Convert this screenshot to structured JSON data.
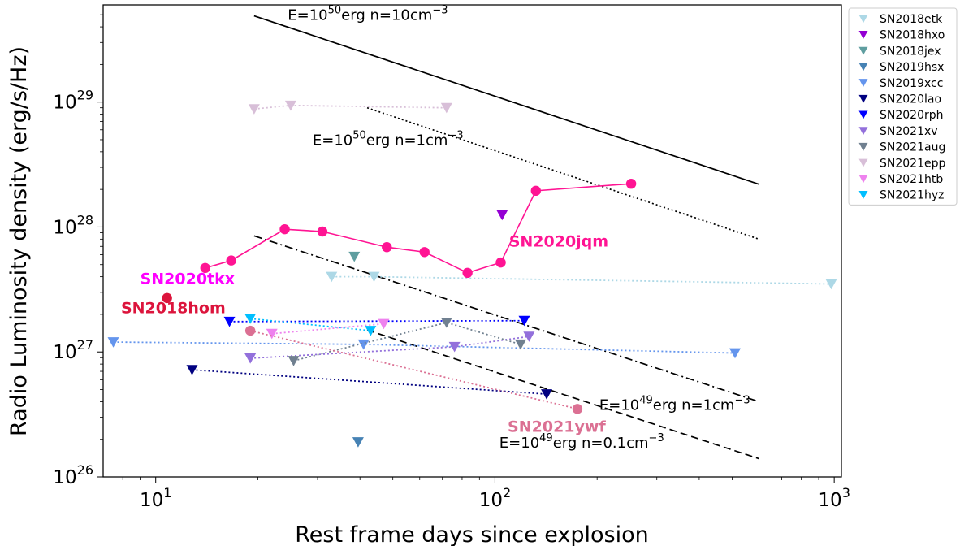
{
  "chart_data": {
    "type": "scatter",
    "xscale": "log",
    "yscale": "log",
    "xlim": [
      7.0,
      1050
    ],
    "ylim": [
      1e+26,
      6e+29
    ],
    "xlabel": "Rest frame days since explosion",
    "ylabel": "Radio Luminosity density (erg/s/Hz)",
    "x_ticks": [
      {
        "value": 10,
        "base": "10",
        "exp": "1"
      },
      {
        "value": 100,
        "base": "10",
        "exp": "2"
      },
      {
        "value": 1000,
        "base": "10",
        "exp": "3"
      }
    ],
    "y_ticks": [
      {
        "value": 1e+26,
        "base": "10",
        "exp": "26"
      },
      {
        "value": 1e+27,
        "base": "10",
        "exp": "27"
      },
      {
        "value": 1e+28,
        "base": "10",
        "exp": "28"
      },
      {
        "value": 1e+29,
        "base": "10",
        "exp": "29"
      }
    ],
    "legend_position": "outside-right-top",
    "series": [
      {
        "name": "SN2018etk",
        "color": "#add8e6",
        "marker": "triangle-down",
        "connect": "dotted",
        "points": [
          [
            33.0,
            4e+27
          ],
          [
            44.0,
            4e+27
          ],
          [
            980,
            3.5e+27
          ]
        ]
      },
      {
        "name": "SN2018hxo",
        "color": "#9400d3",
        "marker": "triangle-down",
        "connect": "none",
        "points": [
          [
            105,
            1.25e+28
          ]
        ]
      },
      {
        "name": "SN2018jex",
        "color": "#5f9ea0",
        "marker": "triangle-down",
        "connect": "none",
        "points": [
          [
            38.5,
            5.8e+27
          ]
        ]
      },
      {
        "name": "SN2019hsx",
        "color": "#4682b4",
        "marker": "triangle-down",
        "connect": "none",
        "points": [
          [
            39.5,
            1.9e+26
          ]
        ]
      },
      {
        "name": "SN2019xcc",
        "color": "#6495ed",
        "marker": "triangle-down",
        "connect": "dotted",
        "points": [
          [
            7.5,
            1.2e+27
          ],
          [
            41.0,
            1.15e+27
          ],
          [
            510,
            9.8e+26
          ]
        ]
      },
      {
        "name": "SN2020lao",
        "color": "#000080",
        "marker": "triangle-down",
        "connect": "dotted",
        "points": [
          [
            12.8,
            7.2e+26
          ],
          [
            142,
            4.6e+26
          ]
        ]
      },
      {
        "name": "SN2020rph",
        "color": "#0000ff",
        "marker": "triangle-down",
        "connect": "dotted",
        "points": [
          [
            16.5,
            1.75e+27
          ],
          [
            122,
            1.78e+27
          ]
        ]
      },
      {
        "name": "SN2021xv",
        "color": "#9370db",
        "marker": "triangle-down",
        "connect": "dotted",
        "points": [
          [
            19.0,
            8.9e+26
          ],
          [
            76,
            1.1e+27
          ],
          [
            126,
            1.33e+27
          ]
        ]
      },
      {
        "name": "SN2021aug",
        "color": "#708090",
        "marker": "triangle-down",
        "connect": "dotted",
        "points": [
          [
            25.5,
            8.5e+26
          ],
          [
            72,
            1.72e+27
          ],
          [
            119,
            1.15e+27
          ]
        ]
      },
      {
        "name": "SN2021epp",
        "color": "#d8bfd8",
        "marker": "triangle-down",
        "connect": "dotted",
        "points": [
          [
            19.5,
            8.8e+28
          ],
          [
            25.0,
            9.4e+28
          ],
          [
            72.0,
            9e+28
          ]
        ]
      },
      {
        "name": "SN2021htb",
        "color": "#ee82ee",
        "marker": "triangle-down",
        "connect": "dotted",
        "points": [
          [
            22.0,
            1.4e+27
          ],
          [
            47.0,
            1.68e+27
          ]
        ]
      },
      {
        "name": "SN2021hyz",
        "color": "#00bfff",
        "marker": "triangle-down",
        "connect": "dotted",
        "points": [
          [
            19.0,
            1.85e+27
          ],
          [
            43.0,
            1.48e+27
          ]
        ]
      }
    ],
    "detections": [
      {
        "name": "SN2020jqm",
        "color": "#ff1493",
        "marker": "circle",
        "connect": "solid",
        "points": [
          [
            14.0,
            4.7e+27
          ],
          [
            16.7,
            5.4e+27
          ],
          [
            24.0,
            9.6e+27
          ],
          [
            31.0,
            9.2e+27
          ],
          [
            48.0,
            6.9e+27
          ],
          [
            62.0,
            6.3e+27
          ],
          [
            83.0,
            4.3e+27
          ],
          [
            104,
            5.2e+27
          ],
          [
            132,
            1.95e+28
          ],
          [
            252,
            2.22e+28
          ]
        ]
      },
      {
        "name": "SN2021ywf",
        "color": "#db7093",
        "marker": "circle",
        "connect": "dotted",
        "points": [
          [
            19.0,
            1.48e+27
          ],
          [
            175,
            3.5e+26
          ]
        ]
      },
      {
        "name": "SN2018hom",
        "color": "#dc143c",
        "marker": "circle",
        "connect": "none",
        "points": [
          [
            10.8,
            2.7e+27
          ]
        ]
      }
    ],
    "point_labels": [
      {
        "text": "SN2020jqm",
        "color": "#ff1493",
        "x": 110,
        "y": 7e+27
      },
      {
        "text": "SN2020tkx",
        "color": "#ff00ff",
        "x": 9.0,
        "y": 3.5e+27
      },
      {
        "text": "SN2018hom",
        "color": "#dc143c",
        "x": 7.9,
        "y": 2.05e+27
      },
      {
        "text": "SN2021ywf",
        "color": "#db7093",
        "x": 109,
        "y": 2.3e+26
      }
    ],
    "model_lines": [
      {
        "style": "solid",
        "x": [
          19.5,
          600
        ],
        "y": [
          4.9e+29,
          2.2e+28
        ],
        "label": {
          "prefix": "E=10",
          "exp": "50",
          "middle": "erg n=10cm",
          "exp2": "−3",
          "x": 24.5,
          "y": 4.55e+29
        }
      },
      {
        "style": "dotted",
        "x": [
          42,
          600
        ],
        "y": [
          9e+28,
          8e+27
        ],
        "label": {
          "prefix": "E=10",
          "exp": "50",
          "middle": "erg n=1cm",
          "exp2": "−3",
          "x": 29.0,
          "y": 4.55e+28
        }
      },
      {
        "style": "dashdot",
        "x": [
          19.5,
          600
        ],
        "y": [
          8.5e+27,
          4e+26
        ],
        "label": {
          "prefix": "E=10",
          "exp": "49",
          "middle": "erg n=1cm",
          "exp2": "−3",
          "x": 203,
          "y": 3.45e+26
        }
      },
      {
        "style": "dashed",
        "x": [
          42,
          600
        ],
        "y": [
          1.5e+27,
          1.4e+26
        ],
        "label": {
          "prefix": "E=10",
          "exp": "49",
          "middle": "erg n=0.1cm",
          "exp2": "−3",
          "x": 103,
          "y": 1.72e+26
        }
      }
    ]
  }
}
